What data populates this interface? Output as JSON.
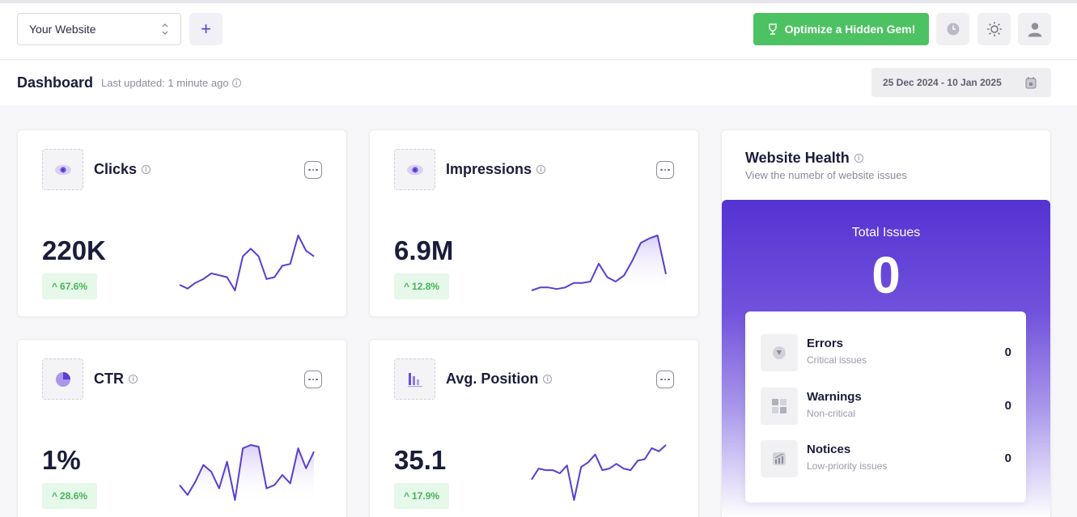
{
  "topbar": {
    "website_select": "Your Website",
    "add_label": "+",
    "optimize_label": "Optimize a Hidden Gem!"
  },
  "subbar": {
    "title": "Dashboard",
    "last_updated": "Last updated: 1 minute ago",
    "date_range": "25 Dec 2024 - 10 Jan 2025"
  },
  "metrics": [
    {
      "title": "Clicks",
      "value": "220K",
      "change": "67.6%",
      "icon": "eye-icon",
      "trend": [
        9,
        7,
        10,
        12,
        15,
        14,
        13,
        6,
        24,
        28,
        24,
        12,
        13,
        19,
        20,
        35,
        27,
        24
      ]
    },
    {
      "title": "Impressions",
      "value": "6.9M",
      "change": "12.8%",
      "icon": "eye-icon",
      "trend": [
        3,
        5,
        5,
        4,
        5,
        8,
        8,
        9,
        21,
        12,
        9,
        13,
        23,
        35,
        38,
        40,
        14
      ]
    },
    {
      "title": "CTR",
      "value": "1%",
      "change": "28.6%",
      "icon": "pie-chart-icon",
      "trend": [
        14,
        8,
        16,
        26,
        22,
        12,
        28,
        5,
        36,
        38,
        37,
        12,
        14,
        20,
        15,
        36,
        24,
        34
      ]
    },
    {
      "title": "Avg. Position",
      "value": "35.1",
      "change": "17.9%",
      "icon": "bar-chart-icon",
      "trend": [
        18,
        25,
        24,
        24,
        22,
        27,
        5,
        26,
        29,
        34,
        24,
        25,
        28,
        25,
        24,
        30,
        31,
        38,
        36,
        40
      ]
    }
  ],
  "health": {
    "title": "Website Health",
    "subtitle": "View the numebr of website issues",
    "total_label": "Total Issues",
    "total_value": "0",
    "issues": [
      {
        "name": "Errors",
        "desc": "Critical issues",
        "count": "0",
        "icon": "alert-icon"
      },
      {
        "name": "Warnings",
        "desc": "Non-critical",
        "count": "0",
        "icon": "grid-icon"
      },
      {
        "name": "Notices",
        "desc": "Low-priority issues",
        "count": "0",
        "icon": "chart-icon"
      }
    ]
  },
  "colors": {
    "accent": "#5b3fd0",
    "green": "#4dc262",
    "badge_bg": "#e6f8e9"
  }
}
